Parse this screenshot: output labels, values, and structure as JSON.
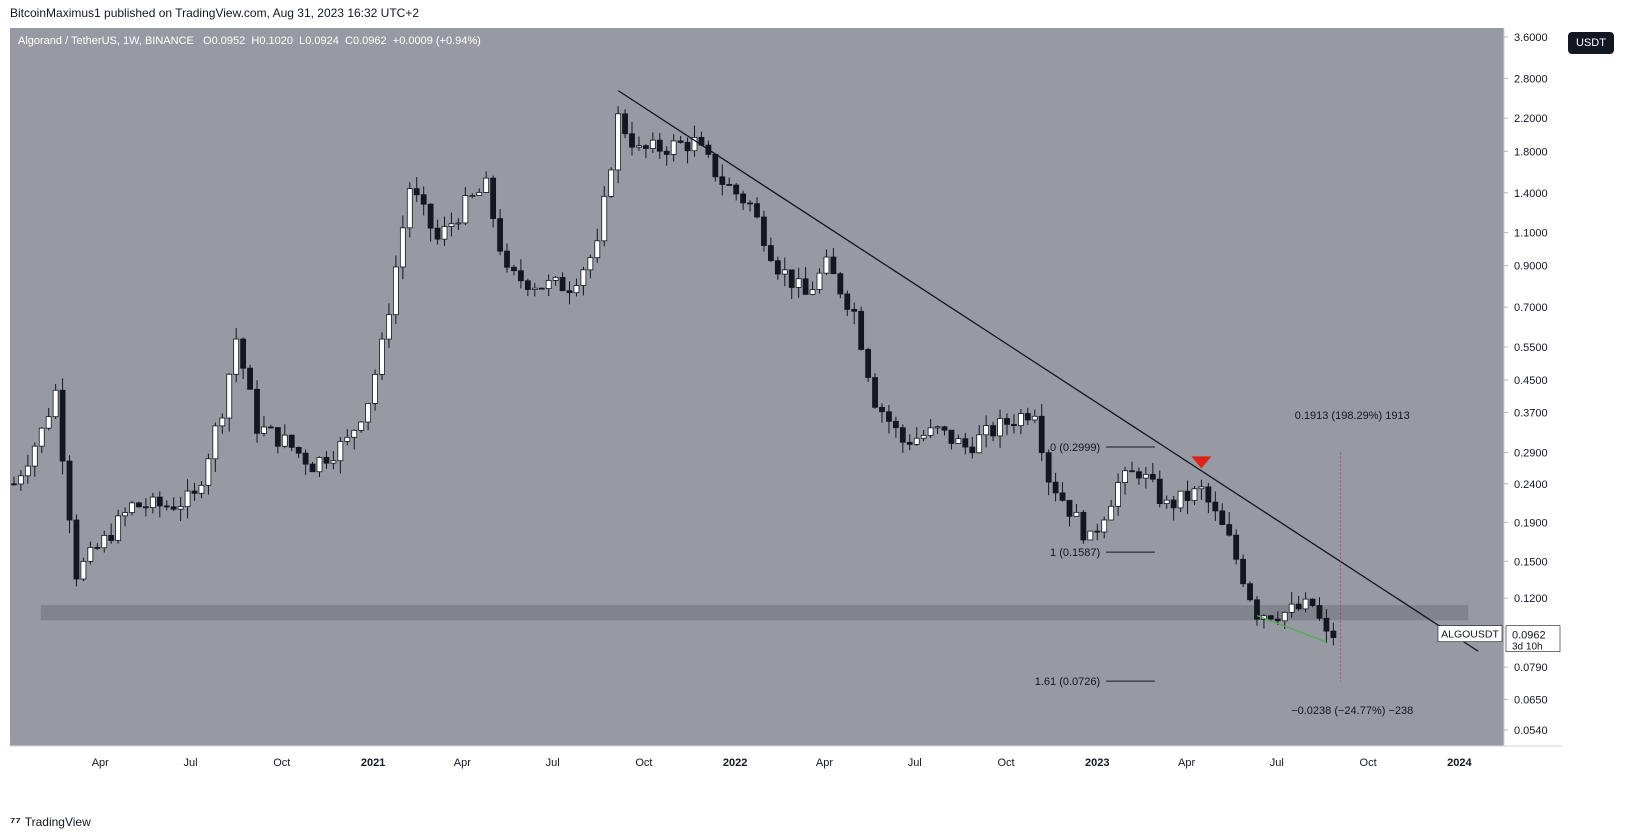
{
  "header": {
    "published_line": "BitcoinMaximus1 published on TradingView.com, Aug 31, 2023 16:32 UTC+2"
  },
  "legend": {
    "symbol": "Algorand / TetherUS, 1W, BINANCE",
    "o_label": "O",
    "o_value": "0.0952",
    "h_label": "H",
    "h_value": "0.1020",
    "l_label": "L",
    "l_value": "0.0924",
    "c_label": "C",
    "c_value": "0.0962",
    "change": "+0.0009 (+0.94%)"
  },
  "currency_button": "USDT",
  "footer": {
    "brand": "TradingView"
  },
  "colors": {
    "background": "#979aa2",
    "up_candle": "#ffffff",
    "down_candle": "#131722",
    "trendline": "#131722",
    "support_band": "#7d8087",
    "green_divergence": "#4caf50",
    "red_marker": "#e0201b"
  },
  "chart_data": {
    "type": "candlestick",
    "title": "Algorand / TetherUS, 1W, BINANCE",
    "y_scale": "log",
    "ylim": [
      0.049,
      3.8
    ],
    "y_ticks": [
      "3.6000",
      "2.8000",
      "2.2000",
      "1.8000",
      "1.4000",
      "1.1000",
      "0.9000",
      "0.7000",
      "0.5500",
      "0.4500",
      "0.3700",
      "0.2900",
      "0.2400",
      "0.1900",
      "0.1500",
      "0.1200",
      "0.0962",
      "0.0790",
      "0.0650",
      "0.0540"
    ],
    "x_tick_labels": [
      "Apr",
      "Jul",
      "Oct",
      "2021",
      "Apr",
      "Jul",
      "Oct",
      "2022",
      "Apr",
      "Jul",
      "Oct",
      "2023",
      "Apr",
      "Jul",
      "Oct",
      "2024"
    ],
    "x_tick_dates": [
      "2020-04-01",
      "2020-07-01",
      "2020-10-01",
      "2021-01-01",
      "2021-04-01",
      "2021-07-01",
      "2021-10-01",
      "2022-01-01",
      "2022-04-01",
      "2022-07-01",
      "2022-10-01",
      "2023-01-01",
      "2023-04-01",
      "2023-07-01",
      "2023-10-01",
      "2024-01-01"
    ],
    "xlim": [
      "2020-01-01",
      "2024-02-15"
    ],
    "weekly_closes_approx": [
      {
        "date": "2020-01-05",
        "close": 0.24
      },
      {
        "date": "2020-02-02",
        "close": 0.33
      },
      {
        "date": "2020-02-16",
        "close": 0.42
      },
      {
        "date": "2020-03-08",
        "close": 0.14
      },
      {
        "date": "2020-04-05",
        "close": 0.17
      },
      {
        "date": "2020-05-03",
        "close": 0.21
      },
      {
        "date": "2020-06-07",
        "close": 0.21
      },
      {
        "date": "2020-07-05",
        "close": 0.22
      },
      {
        "date": "2020-08-02",
        "close": 0.38
      },
      {
        "date": "2020-08-16",
        "close": 0.58
      },
      {
        "date": "2020-09-06",
        "close": 0.34
      },
      {
        "date": "2020-10-04",
        "close": 0.31
      },
      {
        "date": "2020-11-01",
        "close": 0.27
      },
      {
        "date": "2020-12-06",
        "close": 0.31
      },
      {
        "date": "2020-12-27",
        "close": 0.4
      },
      {
        "date": "2021-01-10",
        "close": 0.55
      },
      {
        "date": "2021-02-07",
        "close": 1.45
      },
      {
        "date": "2021-03-07",
        "close": 1.05
      },
      {
        "date": "2021-04-04",
        "close": 1.3
      },
      {
        "date": "2021-04-25",
        "close": 1.45
      },
      {
        "date": "2021-05-16",
        "close": 0.85
      },
      {
        "date": "2021-06-20",
        "close": 0.8
      },
      {
        "date": "2021-07-18",
        "close": 0.8
      },
      {
        "date": "2021-08-15",
        "close": 1.0
      },
      {
        "date": "2021-09-05",
        "close": 2.2
      },
      {
        "date": "2021-09-26",
        "close": 1.8
      },
      {
        "date": "2021-10-24",
        "close": 1.85
      },
      {
        "date": "2021-11-21",
        "close": 1.9
      },
      {
        "date": "2021-12-19",
        "close": 1.5
      },
      {
        "date": "2022-01-16",
        "close": 1.3
      },
      {
        "date": "2022-02-13",
        "close": 0.9
      },
      {
        "date": "2022-03-13",
        "close": 0.75
      },
      {
        "date": "2022-04-03",
        "close": 0.9
      },
      {
        "date": "2022-05-01",
        "close": 0.68
      },
      {
        "date": "2022-05-22",
        "close": 0.4
      },
      {
        "date": "2022-06-19",
        "close": 0.31
      },
      {
        "date": "2022-07-24",
        "close": 0.33
      },
      {
        "date": "2022-08-21",
        "close": 0.3
      },
      {
        "date": "2022-09-25",
        "close": 0.34
      },
      {
        "date": "2022-10-30",
        "close": 0.38
      },
      {
        "date": "2022-11-13",
        "close": 0.25
      },
      {
        "date": "2022-12-25",
        "close": 0.17
      },
      {
        "date": "2023-01-22",
        "close": 0.24
      },
      {
        "date": "2023-02-12",
        "close": 0.26
      },
      {
        "date": "2023-03-12",
        "close": 0.21
      },
      {
        "date": "2023-04-16",
        "close": 0.23
      },
      {
        "date": "2023-05-14",
        "close": 0.17
      },
      {
        "date": "2023-06-11",
        "close": 0.11
      },
      {
        "date": "2023-07-09",
        "close": 0.11
      },
      {
        "date": "2023-08-06",
        "close": 0.115
      },
      {
        "date": "2023-08-20",
        "close": 0.095
      },
      {
        "date": "2023-08-27",
        "close": 0.0962
      }
    ],
    "annotations": {
      "descending_trendline": {
        "from": {
          "date": "2021-09-05",
          "price": 2.6
        },
        "to": {
          "date": "2024-01-20",
          "price": 0.087
        }
      },
      "support_zone": {
        "from": "2020-02-01",
        "to": "2024-01-10",
        "low": 0.105,
        "high": 0.115
      },
      "fib_0_label": "0 (0.2999)",
      "fib_1_label": "1 (0.1587)",
      "fib_161_label": "1.61 (0.0726)",
      "fib_levels": [
        0.2999,
        0.1587,
        0.0726
      ],
      "fib_line_dates": [
        "2023-01-10",
        "2023-02-28"
      ],
      "measure_up_label": "0.1913 (198.29%) 1913",
      "measure_down_label": "−0.0238 (−24.77%) −238",
      "red_marker": {
        "date": "2023-04-16",
        "price": 0.27
      },
      "green_line": {
        "from": {
          "date": "2023-06-11",
          "price": 0.108
        },
        "to": {
          "date": "2023-08-20",
          "price": 0.092
        }
      },
      "last_price": "0.0962",
      "last_price_symbol": "ALGOUSDT",
      "countdown": "3d 10h"
    }
  }
}
